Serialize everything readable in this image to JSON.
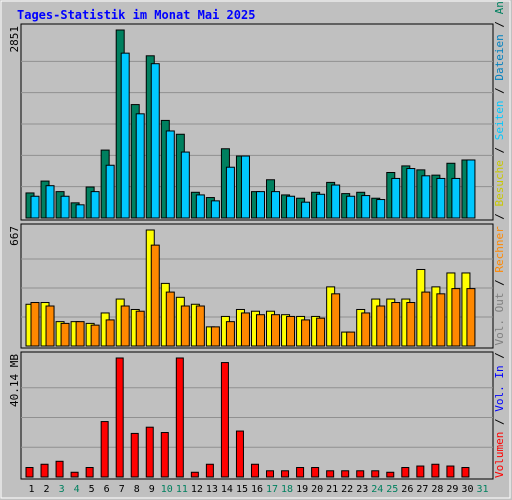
{
  "chart_data": {
    "type": "bar",
    "title": "Tages-Statistik im Monat Mai 2025",
    "categories": [
      "1",
      "2",
      "3",
      "4",
      "5",
      "6",
      "7",
      "8",
      "9",
      "10",
      "11",
      "12",
      "13",
      "14",
      "15",
      "16",
      "17",
      "18",
      "19",
      "20",
      "21",
      "22",
      "23",
      "24",
      "25",
      "26",
      "27",
      "28",
      "29",
      "30",
      "31"
    ],
    "weekend_days": [
      "3",
      "4",
      "10",
      "11",
      "17",
      "18",
      "24",
      "25",
      "31"
    ],
    "panels": [
      {
        "id": "hits",
        "ylabel": "2851",
        "ymax": 2851,
        "series": [
          {
            "name": "Anfragen",
            "color": "#00805f",
            "values": [
              380,
              560,
              400,
              230,
              470,
              1030,
              2851,
              1720,
              2460,
              1480,
              1270,
              390,
              310,
              1050,
              940,
              400,
              580,
              350,
              300,
              390,
              540,
              370,
              390,
              300,
              690,
              790,
              730,
              650,
              830,
              880
            ]
          },
          {
            "name": "Dateien",
            "color": "#00c8ff",
            "values": [
              330,
              490,
              330,
              200,
              400,
              800,
              2500,
              1580,
              2340,
              1320,
              1000,
              350,
              260,
              770,
              940,
              400,
              400,
              330,
              240,
              360,
              500,
              330,
              340,
              280,
              600,
              750,
              640,
              600,
              600,
              880
            ]
          }
        ]
      },
      {
        "id": "visits",
        "ylabel": "667",
        "ymax": 667,
        "series": [
          {
            "name": "Seiten",
            "color": "#00c8ff",
            "values": [
              0,
              0,
              0,
              0,
              0,
              0,
              0,
              0,
              0,
              0,
              0,
              0,
              0,
              0,
              0,
              0,
              0,
              0,
              0,
              0,
              0,
              0,
              0,
              0,
              0,
              0,
              0,
              0,
              0,
              0
            ]
          },
          {
            "name": "Besuche",
            "color": "#ffff00",
            "values": [
              240,
              250,
              140,
              140,
              130,
              190,
              270,
              210,
              667,
              360,
              280,
              240,
              110,
              170,
              210,
              200,
              200,
              180,
              170,
              170,
              340,
              80,
              210,
              270,
              270,
              270,
              440,
              340,
              420,
              420
            ]
          },
          {
            "name": "Rechner",
            "color": "#ff8800",
            "values": [
              250,
              230,
              130,
              140,
              120,
              150,
              230,
              200,
              580,
              310,
              230,
              230,
              110,
              140,
              190,
              180,
              180,
              170,
              150,
              160,
              300,
              80,
              190,
              230,
              250,
              250,
              310,
              300,
              330,
              330
            ]
          }
        ]
      },
      {
        "id": "volume",
        "ylabel": "40.14 MB",
        "ymax": 40.14,
        "series": [
          {
            "name": "Volumen",
            "color": "#ff0000",
            "values": [
              3.2,
              4.3,
              5.3,
              1.6,
              3.2,
              18.7,
              40.14,
              14.7,
              16.8,
              15.0,
              40.14,
              1.6,
              4.3,
              38.6,
              15.5,
              4.3,
              2.1,
              2.1,
              3.2,
              3.2,
              2.1,
              2.1,
              2.1,
              2.1,
              1.6,
              3.2,
              3.7,
              4.3,
              3.7,
              3.2
            ]
          }
        ]
      }
    ],
    "legend": [
      {
        "text": "Anfragen",
        "color": "#00805f"
      },
      {
        "text": "Dateien",
        "color": "#0080c0"
      },
      {
        "text": "Seiten",
        "color": "#00c8ff"
      },
      {
        "text": "Besuche",
        "color": "#c8c800"
      },
      {
        "text": "Rechner",
        "color": "#ff8800"
      },
      {
        "text": "Vol. Out",
        "color": "#808080"
      },
      {
        "text": "Vol. In",
        "color": "#0000ff"
      },
      {
        "text": "Volumen",
        "color": "#ff0000"
      }
    ],
    "legend_separator": " / ",
    "title_color": "#0000ff",
    "label_color": "#000000",
    "weekend_label_color": "#00805f",
    "grid": true
  }
}
